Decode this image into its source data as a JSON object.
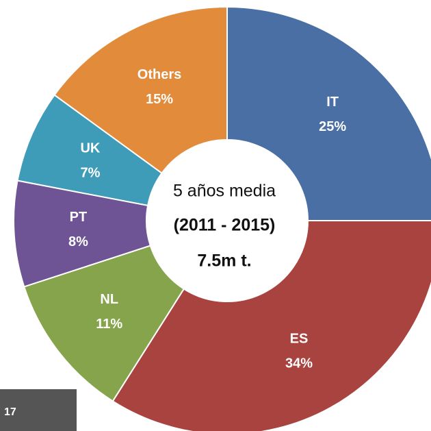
{
  "chart_data": {
    "type": "donut",
    "categories": [
      "IT",
      "ES",
      "NL",
      "PT",
      "UK",
      "Others"
    ],
    "values": [
      25,
      34,
      11,
      8,
      7,
      15
    ],
    "value_labels": [
      "25%",
      "34%",
      "11%",
      "8%",
      "7%",
      "15%"
    ],
    "colors": [
      "#4a6fa5",
      "#a9433f",
      "#86a44b",
      "#6e5494",
      "#3f9cb9",
      "#e18b3b"
    ],
    "annotations": [
      "5 años media",
      "(2011 - 2015)",
      "7.5m t."
    ]
  },
  "footer_tag": "17"
}
